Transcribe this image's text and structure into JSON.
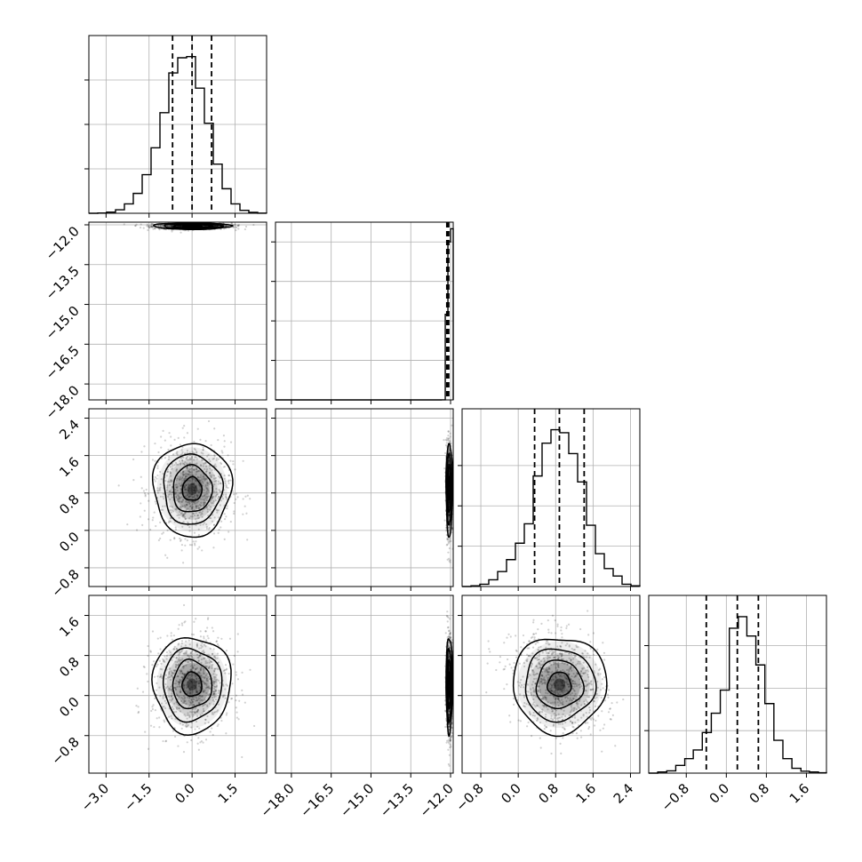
{
  "chart_data": {
    "type": "corner",
    "params": [
      {
        "index": 0,
        "range": [
          -3.6,
          2.6
        ],
        "ticks": [
          -3.0,
          -1.5,
          0.0,
          1.5
        ],
        "tick_labels": [
          "−3.0",
          "−1.5",
          "0.0",
          "1.5"
        ],
        "quantiles": [
          -0.68,
          0.0,
          0.68
        ],
        "center": 0.0,
        "sigma": 0.68
      },
      {
        "index": 1,
        "range": [
          -18.6,
          -11.9
        ],
        "ticks": [
          -18.0,
          -16.5,
          -15.0,
          -13.5,
          -12.0
        ],
        "tick_labels": [
          "−18.0",
          "−16.5",
          "−15.0",
          "−13.5",
          "−12.0"
        ],
        "quantiles": [
          -12.14,
          -12.1,
          -12.07
        ]
      },
      {
        "index": 2,
        "range": [
          -1.2,
          2.6
        ],
        "ticks": [
          -0.8,
          0.0,
          0.8,
          1.6,
          2.4
        ],
        "tick_labels": [
          "−0.8",
          "0.0",
          "0.8",
          "1.6",
          "2.4"
        ],
        "quantiles": [
          0.35,
          0.88,
          1.41
        ],
        "center": 0.88,
        "sigma": 0.5
      },
      {
        "index": 3,
        "range": [
          -1.55,
          2.0
        ],
        "ticks": [
          -0.8,
          0.0,
          0.8,
          1.6
        ],
        "tick_labels": [
          "−0.8",
          "0.0",
          "0.8",
          "1.6"
        ],
        "quantiles": [
          -0.4,
          0.22,
          0.64
        ],
        "center": 0.22,
        "sigma": 0.48
      }
    ],
    "histograms": [
      {
        "param": 0,
        "bin_edges": [
          -3.6,
          -3.29,
          -2.98,
          -2.67,
          -2.36,
          -2.05,
          -1.74,
          -1.43,
          -1.12,
          -0.81,
          -0.5,
          -0.19,
          0.12,
          0.43,
          0.74,
          1.05,
          1.36,
          1.67,
          1.98,
          2.29,
          2.6
        ],
        "counts": [
          0,
          2,
          10,
          30,
          80,
          170,
          330,
          560,
          860,
          1200,
          1330,
          1340,
          1070,
          770,
          420,
          210,
          80,
          25,
          8,
          1
        ],
        "ylim": [
          0,
          1520
        ],
        "yticks": [
          380,
          760,
          1140
        ]
      },
      {
        "param": 1,
        "bin_edges": [
          -18.6,
          -12.6,
          -12.35,
          -12.2,
          -12.1,
          -12.0,
          -11.9
        ],
        "counts": [
          0,
          0,
          1,
          1300,
          2400,
          2600
        ],
        "ylim": [
          0,
          2700
        ],
        "yticks": [
          600,
          1200,
          1800,
          2400
        ]
      },
      {
        "param": 2,
        "bin_edges": [
          -1.2,
          -1.01,
          -0.82,
          -0.63,
          -0.44,
          -0.25,
          -0.06,
          0.13,
          0.32,
          0.51,
          0.7,
          0.89,
          1.08,
          1.27,
          1.46,
          1.65,
          1.84,
          2.03,
          2.22,
          2.41,
          2.6
        ],
        "counts": [
          0,
          5,
          15,
          45,
          100,
          180,
          290,
          420,
          740,
          960,
          1050,
          1030,
          890,
          700,
          410,
          220,
          120,
          70,
          15,
          5
        ],
        "ylim": [
          0,
          1190
        ],
        "yticks": [
          270,
          540,
          810
        ]
      },
      {
        "param": 3,
        "bin_edges": [
          -1.55,
          -1.37,
          -1.19,
          -1.01,
          -0.83,
          -0.66,
          -0.48,
          -0.3,
          -0.12,
          0.06,
          0.24,
          0.41,
          0.59,
          0.77,
          0.95,
          1.13,
          1.31,
          1.49,
          1.66,
          1.84,
          2.0
        ],
        "counts": [
          0,
          6,
          12,
          40,
          75,
          120,
          210,
          310,
          430,
          750,
          810,
          710,
          560,
          360,
          170,
          75,
          25,
          10,
          6,
          2
        ],
        "ylim": [
          0,
          920
        ],
        "yticks": [
          220,
          440,
          660
        ]
      }
    ],
    "pairs": [
      {
        "x_param": 0,
        "y_param": 1,
        "center": [
          0.0,
          -12.05
        ],
        "sigma": [
          0.68,
          0.06
        ],
        "rotation": 0
      },
      {
        "x_param": 0,
        "y_param": 2,
        "center": [
          0.0,
          0.88
        ],
        "sigma": [
          0.68,
          0.5
        ],
        "rotation": 0
      },
      {
        "x_param": 1,
        "y_param": 2,
        "center": [
          -12.05,
          0.88
        ],
        "sigma": [
          0.06,
          0.5
        ],
        "rotation": 0
      },
      {
        "x_param": 0,
        "y_param": 3,
        "center": [
          0.0,
          0.22
        ],
        "sigma": [
          0.68,
          0.48
        ],
        "rotation": 0
      },
      {
        "x_param": 1,
        "y_param": 3,
        "center": [
          -12.05,
          0.22
        ],
        "sigma": [
          0.06,
          0.48
        ],
        "rotation": 0
      },
      {
        "x_param": 2,
        "y_param": 3,
        "center": [
          0.88,
          0.22
        ],
        "sigma": [
          0.5,
          0.48
        ],
        "rotation": -0.2
      }
    ],
    "contour_levels_sigma": [
      0.5,
      1.0,
      1.5,
      2.0
    ],
    "grid": true,
    "title": "",
    "xlabel": "",
    "ylabel": ""
  }
}
